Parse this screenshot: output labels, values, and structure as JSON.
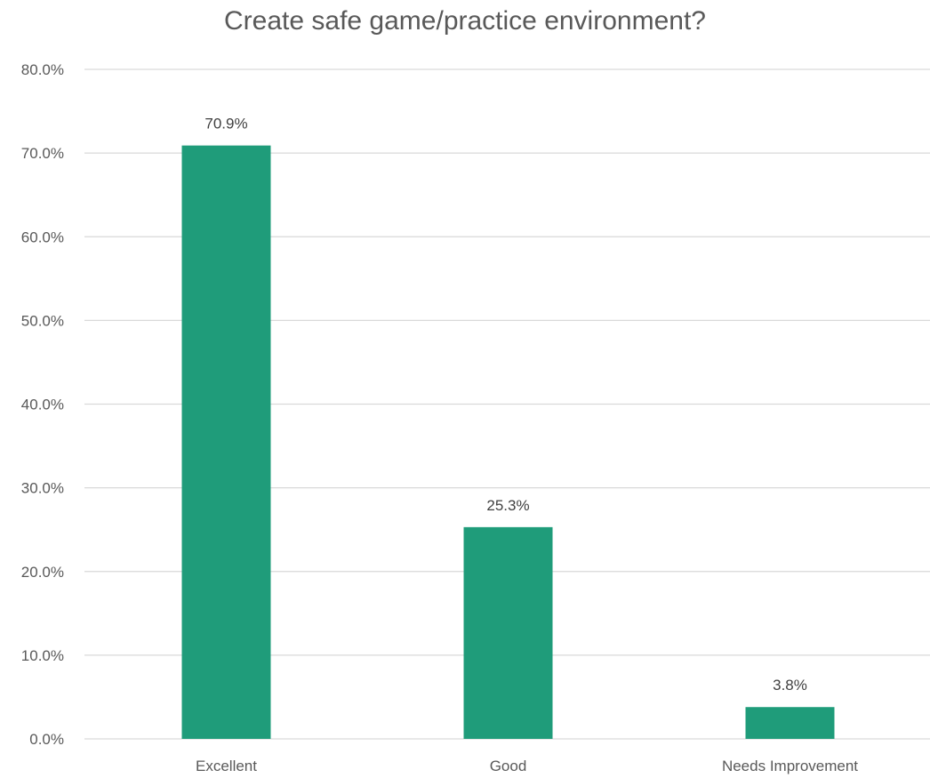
{
  "chart_data": {
    "type": "bar",
    "title": "Create safe game/practice environment?",
    "categories": [
      "Excellent",
      "Good",
      "Needs Improvement"
    ],
    "values": [
      70.9,
      25.3,
      3.8
    ],
    "data_labels": [
      "70.9%",
      "25.3%",
      "3.8%"
    ],
    "ylim": [
      0,
      80
    ],
    "yticks": [
      0,
      10,
      20,
      30,
      40,
      50,
      60,
      70,
      80
    ],
    "ytick_labels": [
      "0.0%",
      "10.0%",
      "20.0%",
      "30.0%",
      "40.0%",
      "50.0%",
      "60.0%",
      "70.0%",
      "80.0%"
    ],
    "xlabel": "",
    "ylabel": "",
    "grid": true,
    "legend": "none",
    "bar_color": "#1f9c7a",
    "grid_color": "#d9d9d9",
    "text_color": "#595959"
  }
}
